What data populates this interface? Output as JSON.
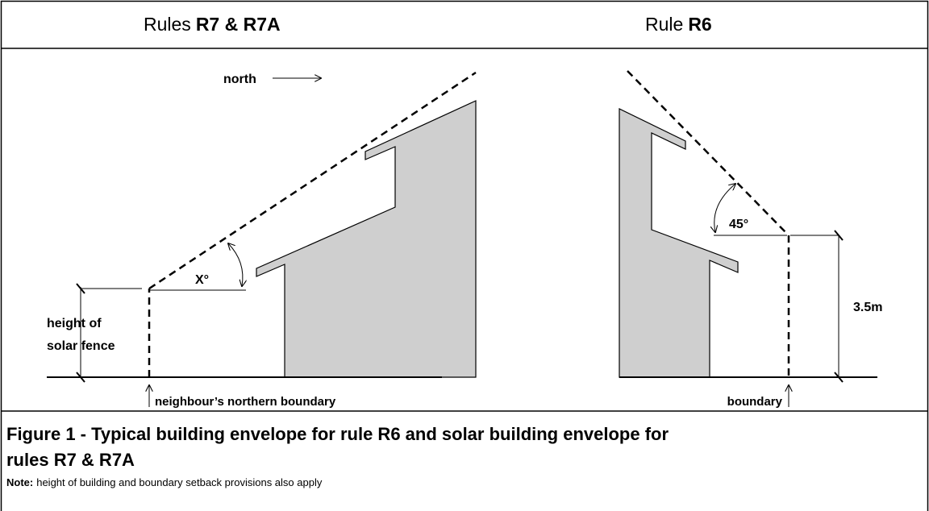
{
  "header": {
    "left": {
      "prefix": "Rules",
      "bold": "R7 & R7A"
    },
    "right": {
      "prefix": "Rule",
      "bold": "R6"
    }
  },
  "left_diagram": {
    "north": "north",
    "angle": "X°",
    "fence_label": [
      "height of",
      "solar fence"
    ],
    "boundary": "neighbour’s northern boundary"
  },
  "right_diagram": {
    "angle": "45°",
    "height": "3.5m",
    "boundary": "boundary"
  },
  "caption": {
    "title_lines": [
      "Figure 1 - Typical building envelope for rule R6 and solar building envelope  for",
      "rules R7 & R7A"
    ],
    "note_label": "Note:",
    "note": "height of building and boundary setback provisions also apply"
  }
}
